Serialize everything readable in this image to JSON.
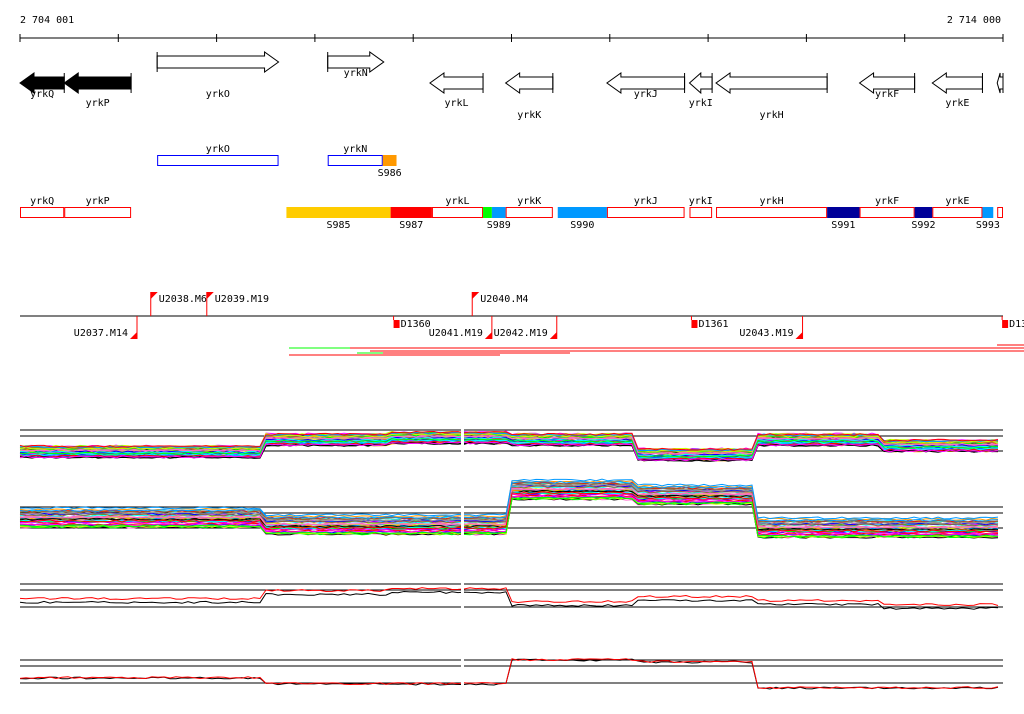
{
  "ruler": {
    "start_label": "2 704 001",
    "end_label": "2 714 000",
    "start": 2704001,
    "end": 2714000
  },
  "colors": {
    "accent_red": "#ff0000",
    "blue": "#0000ff",
    "orange": "#ff9900",
    "yellow": "#ffcc00",
    "green": "#00ff00",
    "sky": "#0099ff",
    "navy": "#000099"
  },
  "genes": [
    {
      "name": "yrkQ",
      "start": 0,
      "end": 450,
      "strand": "-",
      "filled": true
    },
    {
      "name": "yrkP",
      "start": 450,
      "end": 1130,
      "strand": "-",
      "filled": true
    },
    {
      "name": "yrkO",
      "start": 1395,
      "end": 2630,
      "strand": "+"
    },
    {
      "name": "yrkN",
      "start": 3130,
      "end": 3700,
      "strand": "+"
    },
    {
      "name": "yrkL",
      "start": 4170,
      "end": 4710,
      "strand": "-"
    },
    {
      "name": "yrkK",
      "start": 4940,
      "end": 5420,
      "strand": "-"
    },
    {
      "name": "yrkJ",
      "start": 5970,
      "end": 6760,
      "strand": "-"
    },
    {
      "name": "yrkI",
      "start": 6810,
      "end": 7040,
      "strand": "-"
    },
    {
      "name": "yrkH",
      "start": 7080,
      "end": 8210,
      "strand": "-"
    },
    {
      "name": "yrkF",
      "start": 8540,
      "end": 9100,
      "strand": "-"
    },
    {
      "name": "yrkE",
      "start": 9280,
      "end": 9790,
      "strand": "-"
    },
    {
      "name": "",
      "start": 9940,
      "end": 9999,
      "strand": "-"
    }
  ],
  "forward_units": [
    {
      "label": "yrkO",
      "start": 1395,
      "end": 2630,
      "color": "#0000ff"
    },
    {
      "label": "yrkN",
      "start": 3130,
      "end": 3690,
      "color": "#0000ff"
    },
    {
      "label": "S986",
      "start": 3690,
      "end": 3830,
      "color": "#ff9900",
      "filled": true
    }
  ],
  "reverse_units": [
    {
      "label": "yrkQ",
      "start": 0,
      "end": 450,
      "color": "#ff0000"
    },
    {
      "label": "yrkP",
      "start": 450,
      "end": 1130,
      "color": "#ff0000"
    },
    {
      "label": "S985",
      "start": 2710,
      "end": 3770,
      "color": "#ffcc00",
      "filled": true
    },
    {
      "label": "S987",
      "start": 3770,
      "end": 4190,
      "color": "#ff0000",
      "filled": true
    },
    {
      "label": "yrkL",
      "start": 4190,
      "end": 4710,
      "color": "#ff0000"
    },
    {
      "label": "",
      "start": 4710,
      "end": 4800,
      "color": "#00ff00",
      "filled": true
    },
    {
      "label": "S989",
      "start": 4800,
      "end": 4940,
      "color": "#0099ff",
      "filled": true
    },
    {
      "label": "yrkK",
      "start": 4940,
      "end": 5420,
      "color": "#ff0000"
    },
    {
      "label": "S990",
      "start": 5470,
      "end": 5970,
      "color": "#0099ff",
      "filled": true
    },
    {
      "label": "yrkJ",
      "start": 5970,
      "end": 6760,
      "color": "#ff0000"
    },
    {
      "label": "yrkI",
      "start": 6810,
      "end": 7040,
      "color": "#ff0000"
    },
    {
      "label": "yrkH",
      "start": 7080,
      "end": 8210,
      "color": "#ff0000"
    },
    {
      "label": "S991",
      "start": 8210,
      "end": 8540,
      "color": "#000099",
      "filled": true
    },
    {
      "label": "yrkF",
      "start": 8540,
      "end": 9100,
      "color": "#ff0000"
    },
    {
      "label": "S992",
      "start": 9100,
      "end": 9280,
      "color": "#000099",
      "filled": true
    },
    {
      "label": "yrkE",
      "start": 9280,
      "end": 9790,
      "color": "#ff0000"
    },
    {
      "label": "S993",
      "start": 9790,
      "end": 9900,
      "color": "#0099ff",
      "filled": true
    },
    {
      "label": "",
      "start": 9940,
      "end": 9999,
      "color": "#ff0000"
    }
  ],
  "features_above": [
    {
      "label": "U2038.M6",
      "pos": 1330
    },
    {
      "label": "U2039.M19",
      "pos": 1900
    },
    {
      "label": "U2040.M4",
      "pos": 4600
    }
  ],
  "features_below": [
    {
      "label": "U2037.M14",
      "pos": 1190,
      "type": "flag"
    },
    {
      "label": "D1360",
      "pos": 3800,
      "type": "box"
    },
    {
      "label": "U2041.M19",
      "pos": 4800,
      "type": "flag"
    },
    {
      "label": "U2042.M19",
      "pos": 5460,
      "type": "flag"
    },
    {
      "label": "D1361",
      "pos": 6830,
      "type": "box"
    },
    {
      "label": "U2043.M19",
      "pos": 7960,
      "type": "flag"
    },
    {
      "label": "D13",
      "pos": 9990,
      "type": "box"
    }
  ]
}
